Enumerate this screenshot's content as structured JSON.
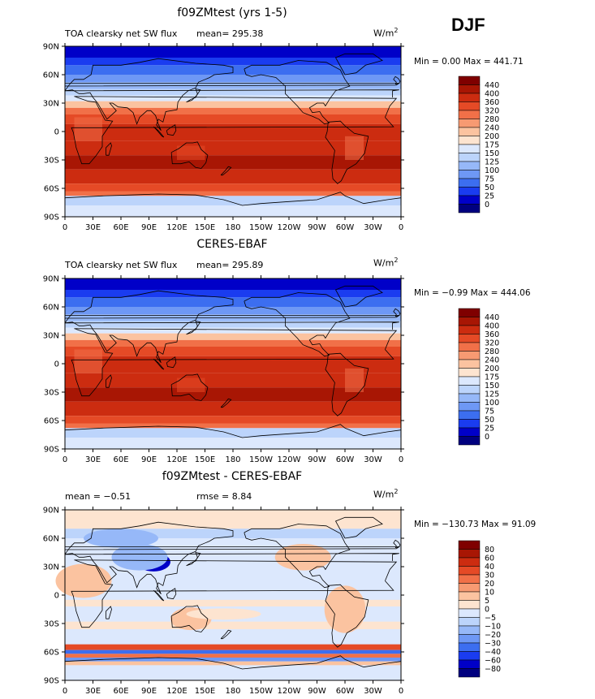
{
  "season": "DJF",
  "panels": [
    {
      "title": "f09ZMtest (yrs 1-5)",
      "left_label": "TOA clearsky net SW flux",
      "mid_label": "mean= 295.38",
      "units_base": "W/m",
      "units_exp": "2",
      "minmax": "Min =    0.00 Max = 441.71",
      "kind": "abs",
      "colorbar": {
        "colors": [
          "#00007f",
          "#0000c8",
          "#1a3cf0",
          "#3c6ef0",
          "#6e98f5",
          "#96b8f8",
          "#bcd4fb",
          "#dce8fd",
          "#fde4d0",
          "#fbc3a0",
          "#f79a72",
          "#f17048",
          "#e54a26",
          "#cc2c10",
          "#a81604",
          "#7f0000"
        ],
        "labels": [
          "440",
          "400",
          "360",
          "320",
          "280",
          "240",
          "200",
          "175",
          "150",
          "125",
          "100",
          "75",
          "50",
          "25",
          "0"
        ]
      }
    },
    {
      "title": "CERES-EBAF",
      "left_label": "TOA clearsky net SW flux",
      "mid_label": "mean= 295.89",
      "units_base": "W/m",
      "units_exp": "2",
      "minmax": "Min =  −0.99 Max = 444.06",
      "kind": "abs",
      "colorbar": {
        "colors": [
          "#00007f",
          "#0000c8",
          "#1a3cf0",
          "#3c6ef0",
          "#6e98f5",
          "#96b8f8",
          "#bcd4fb",
          "#dce8fd",
          "#fde4d0",
          "#fbc3a0",
          "#f79a72",
          "#f17048",
          "#e54a26",
          "#cc2c10",
          "#a81604",
          "#7f0000"
        ],
        "labels": [
          "440",
          "400",
          "360",
          "320",
          "280",
          "240",
          "200",
          "175",
          "150",
          "125",
          "100",
          "75",
          "50",
          "25",
          "0"
        ]
      }
    },
    {
      "title": "f09ZMtest - CERES-EBAF",
      "left_label": "mean =   −0.51",
      "mid_label": "rmse =   8.84",
      "units_base": "W/m",
      "units_exp": "2",
      "minmax": "Min = −130.73 Max =  91.09",
      "kind": "diff",
      "colorbar": {
        "colors": [
          "#00007f",
          "#0000c8",
          "#1a3cf0",
          "#3c6ef0",
          "#6e98f5",
          "#96b8f8",
          "#bcd4fb",
          "#dce8fd",
          "#fde4d0",
          "#fbc3a0",
          "#f79a72",
          "#f17048",
          "#e54a26",
          "#cc2c10",
          "#a81604",
          "#7f0000"
        ],
        "labels": [
          "80",
          "60",
          "40",
          "30",
          "20",
          "10",
          "5",
          "0",
          "−5",
          "−10",
          "−20",
          "−30",
          "−40",
          "−60",
          "−80"
        ]
      }
    }
  ],
  "lat_ticks": [
    "90N",
    "60N",
    "30N",
    "0",
    "30S",
    "60S",
    "90S"
  ],
  "lon_ticks": [
    "0",
    "30E",
    "60E",
    "90E",
    "120E",
    "150E",
    "180",
    "150W",
    "120W",
    "90W",
    "60W",
    "30W",
    "0"
  ]
}
